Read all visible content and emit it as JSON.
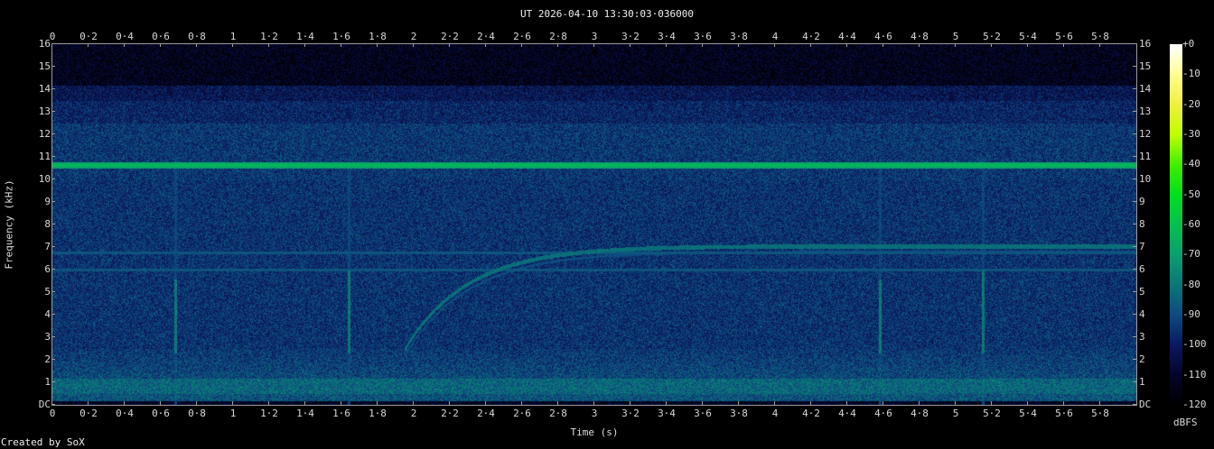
{
  "chart_data": {
    "type": "heatmap",
    "subtype": "spectrogram",
    "title": "UT 2026-04-10 13:30:03·036000",
    "xlabel": "Time (s)",
    "ylabel": "Frequency (kHz)",
    "xlim": [
      0,
      6
    ],
    "ylim": [
      0,
      16
    ],
    "x_ticks": [
      "0",
      "0·2",
      "0·4",
      "0·6",
      "0·8",
      "1",
      "1·2",
      "1·4",
      "1·6",
      "1·8",
      "2",
      "2·2",
      "2·4",
      "2·6",
      "2·8",
      "3",
      "3·2",
      "3·4",
      "3·6",
      "3·8",
      "4",
      "4·2",
      "4·4",
      "4·6",
      "4·8",
      "5",
      "5·2",
      "5·4",
      "5·6",
      "5·8"
    ],
    "y_ticks": [
      "DC",
      "1",
      "2",
      "3",
      "4",
      "5",
      "6",
      "7",
      "8",
      "9",
      "10",
      "11",
      "12",
      "13",
      "14",
      "15",
      "16"
    ],
    "colorbar": {
      "unit": "dBFS",
      "range": [
        -120,
        0
      ],
      "ticks": [
        "+0",
        "-10",
        "-20",
        "-30",
        "-40",
        "-50",
        "-60",
        "-70",
        "-80",
        "-90",
        "-100",
        "-110",
        "-120"
      ],
      "colors": [
        "#000000",
        "#05052a",
        "#0a1a60",
        "#0f4a80",
        "#0a7878",
        "#0aa070",
        "#05c050",
        "#00e020",
        "#40f000",
        "#c0ff00",
        "#f0f040",
        "#ffff90",
        "#ffffff"
      ]
    },
    "features": {
      "steady_tone_khz": 10.65,
      "weak_tones_khz": [
        6.0,
        6.75
      ],
      "chirp": {
        "start_s": 1.95,
        "start_khz": 2.5,
        "end_khz": 7.05,
        "settle_s": 3.2
      },
      "impulses_s": [
        0.68,
        1.64,
        4.58,
        5.15
      ]
    }
  },
  "footer": {
    "credit": "Created by SoX"
  }
}
